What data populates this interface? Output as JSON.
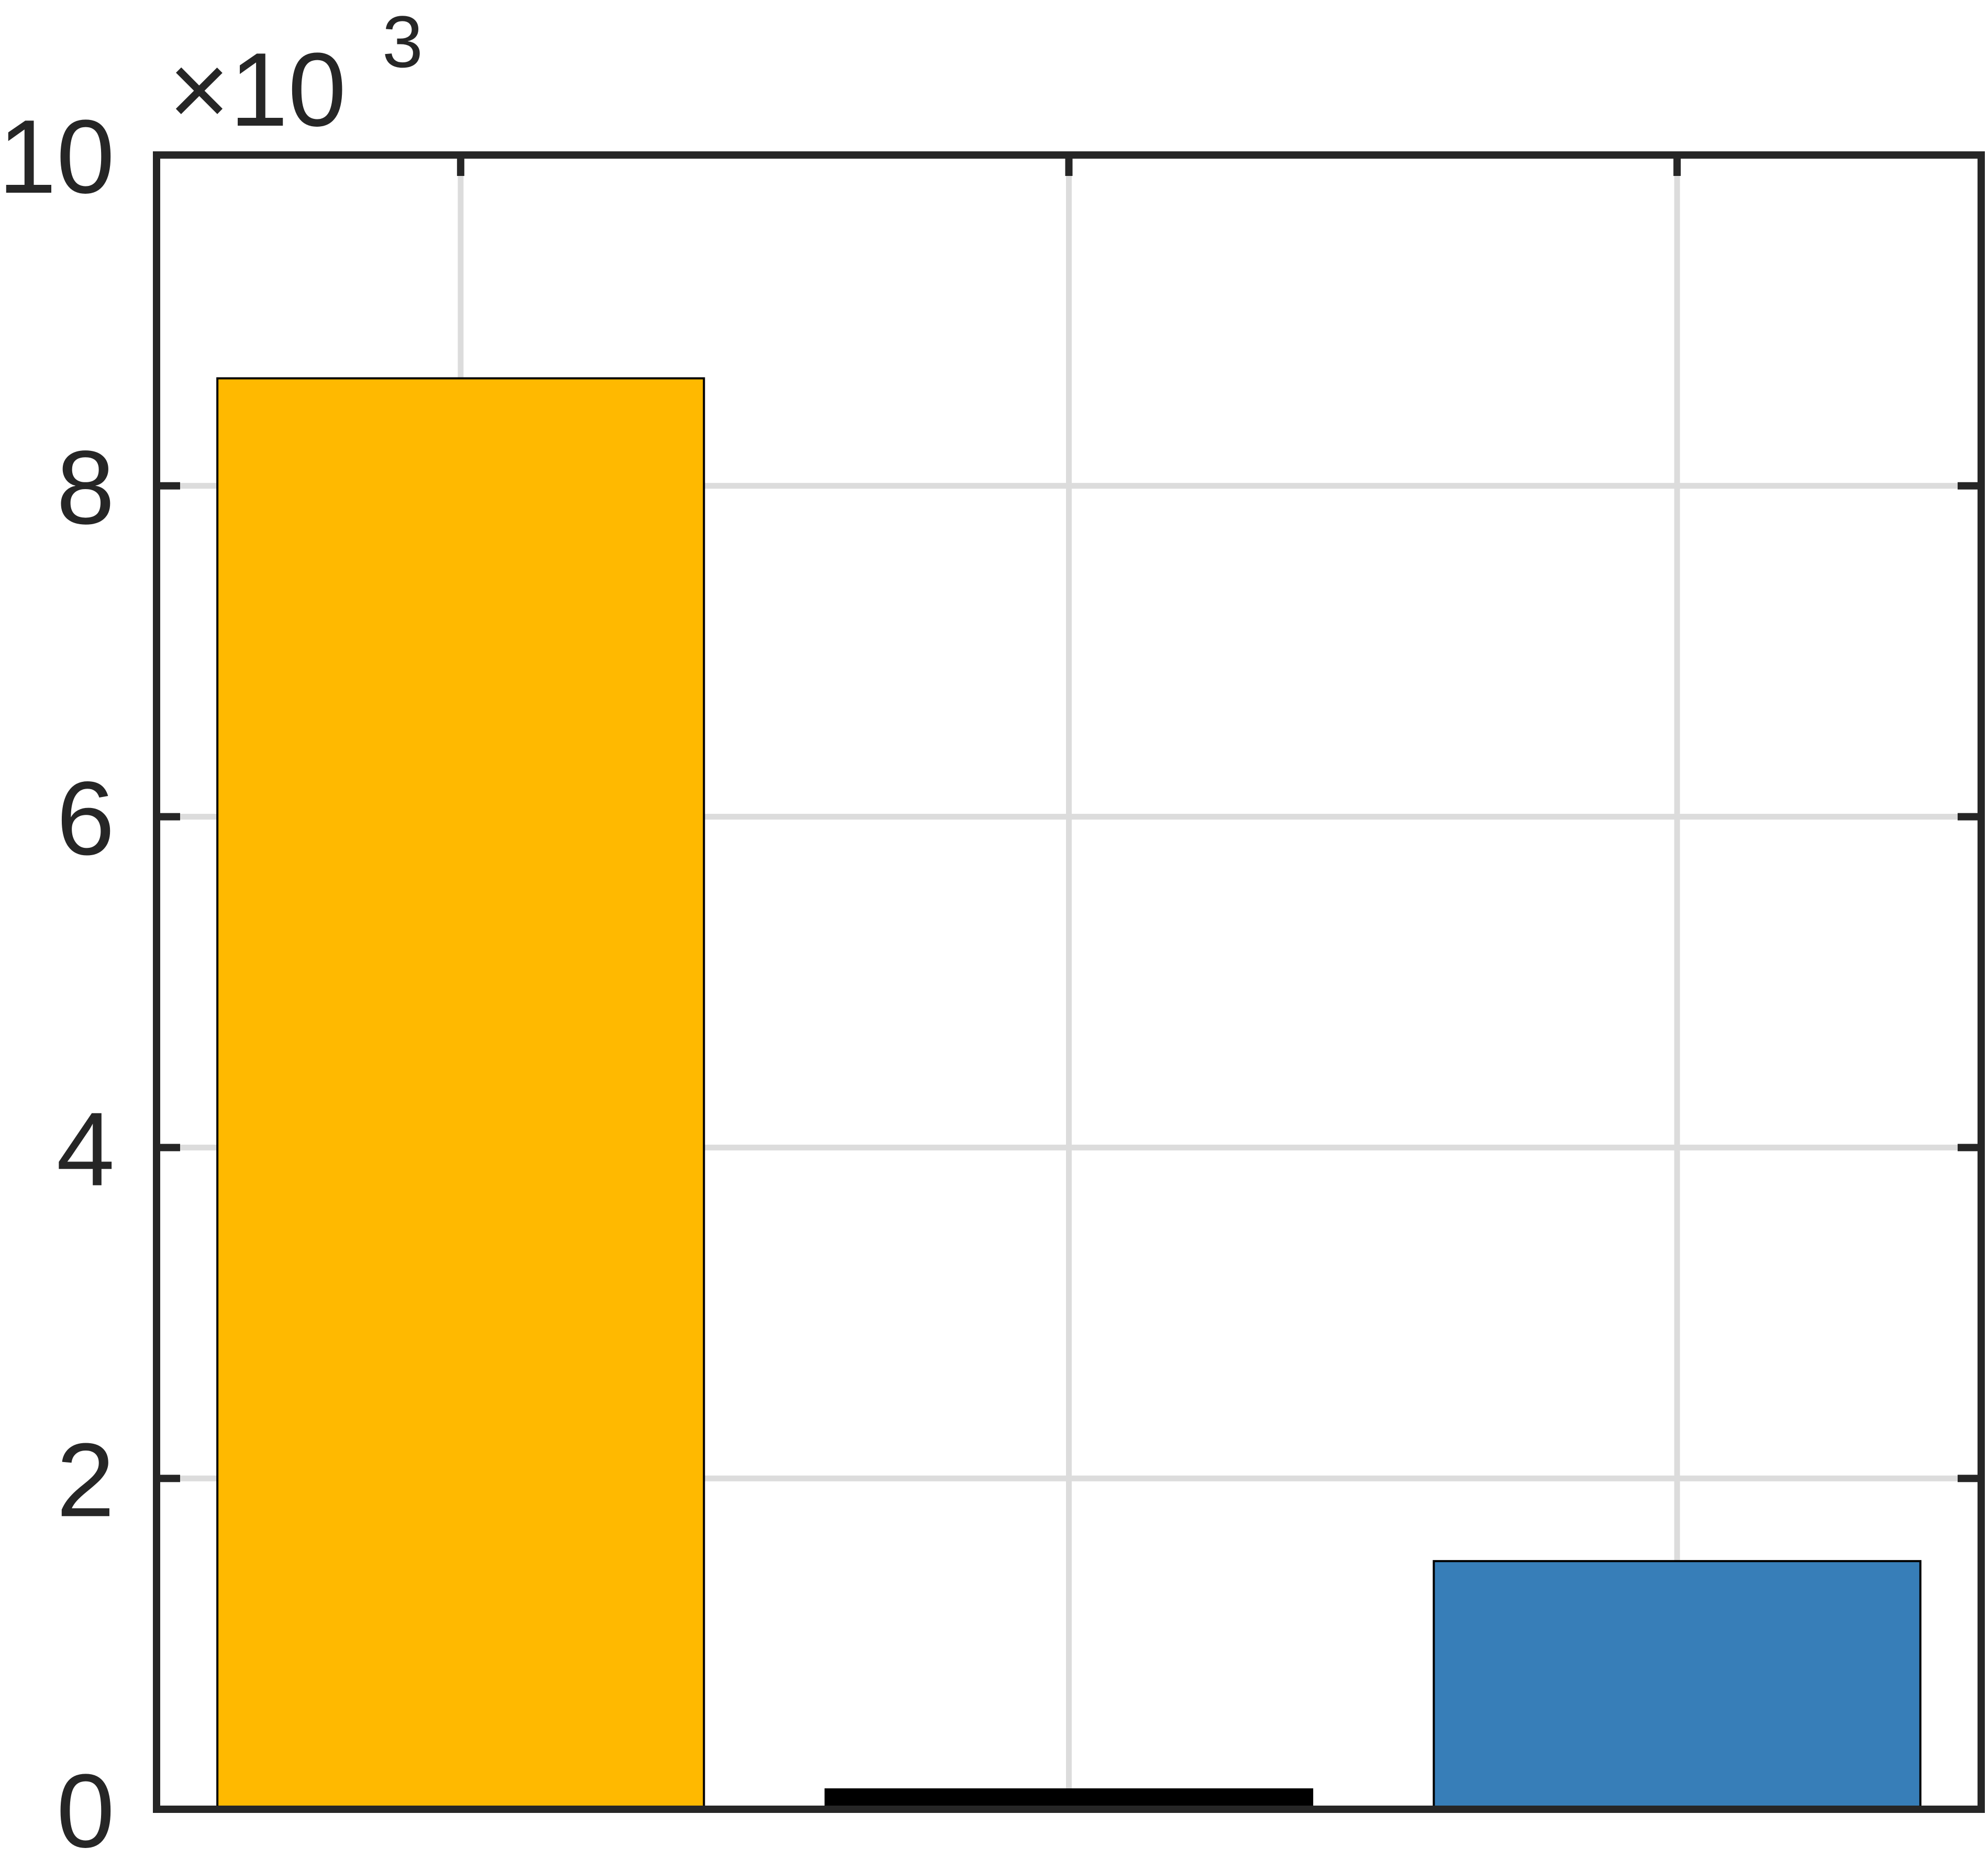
{
  "chart_data": {
    "type": "bar",
    "title": "",
    "xlabel": "",
    "ylabel": "",
    "categories": [
      "",
      "",
      ""
    ],
    "values": [
      8650,
      120,
      1500
    ],
    "bar_colors": [
      "#FFB900",
      "#000000",
      "#377EB8"
    ],
    "ylim": [
      0,
      10000
    ],
    "yticks": [
      0,
      2000,
      4000,
      6000,
      8000,
      10000
    ],
    "ytick_labels": [
      "0",
      "2",
      "4",
      "6",
      "8",
      "10"
    ],
    "exponent": {
      "base": "×10",
      "power": "3"
    },
    "grid": true,
    "box": true,
    "axis_color": "#262626",
    "grid_color": "#DCDCDC"
  }
}
